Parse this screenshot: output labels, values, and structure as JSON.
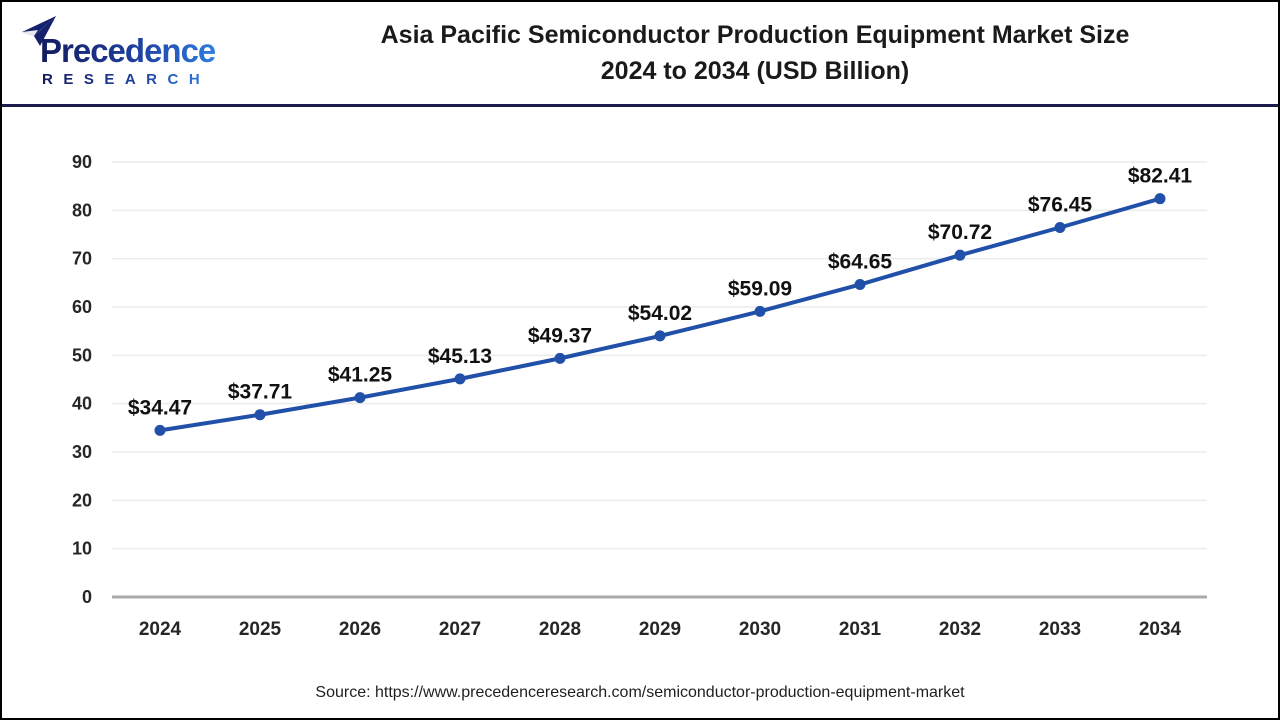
{
  "header": {
    "logo": {
      "wordmark": "Precedence",
      "subtitle": "RESEARCH",
      "color_navy": "#1b2668",
      "color_blue": "#2e7cd9"
    },
    "title_line1": "Asia Pacific Semiconductor Production Equipment Market Size",
    "title_line2": "2024 to 2034 (USD Billion)"
  },
  "chart_data": {
    "type": "line",
    "title": "Asia Pacific Semiconductor Production Equipment Market Size 2024 to 2034 (USD Billion)",
    "categories": [
      "2024",
      "2025",
      "2026",
      "2027",
      "2028",
      "2029",
      "2030",
      "2031",
      "2032",
      "2033",
      "2034"
    ],
    "values": [
      34.47,
      37.71,
      41.25,
      45.13,
      49.37,
      54.02,
      59.09,
      64.65,
      70.72,
      76.45,
      82.41
    ],
    "point_labels": [
      "$34.47",
      "$37.71",
      "$41.25",
      "$45.13",
      "$49.37",
      "$54.02",
      "$59.09",
      "$64.65",
      "$70.72",
      "$76.45",
      "$82.41"
    ],
    "xlabel": "",
    "ylabel": "",
    "ylim": [
      0,
      90
    ],
    "yticks": [
      0,
      10,
      20,
      30,
      40,
      50,
      60,
      70,
      80,
      90
    ],
    "grid": true,
    "legend": false,
    "line_color": "#2150a8",
    "marker_color": "#2150a8",
    "label_color": "#111111",
    "tick_color": "#262626",
    "grid_color": "#ebebeb",
    "axis_line_color": "#aaaaaa"
  },
  "footer": {
    "source": "Source: https://www.precedenceresearch.com/semiconductor-production-equipment-market"
  }
}
